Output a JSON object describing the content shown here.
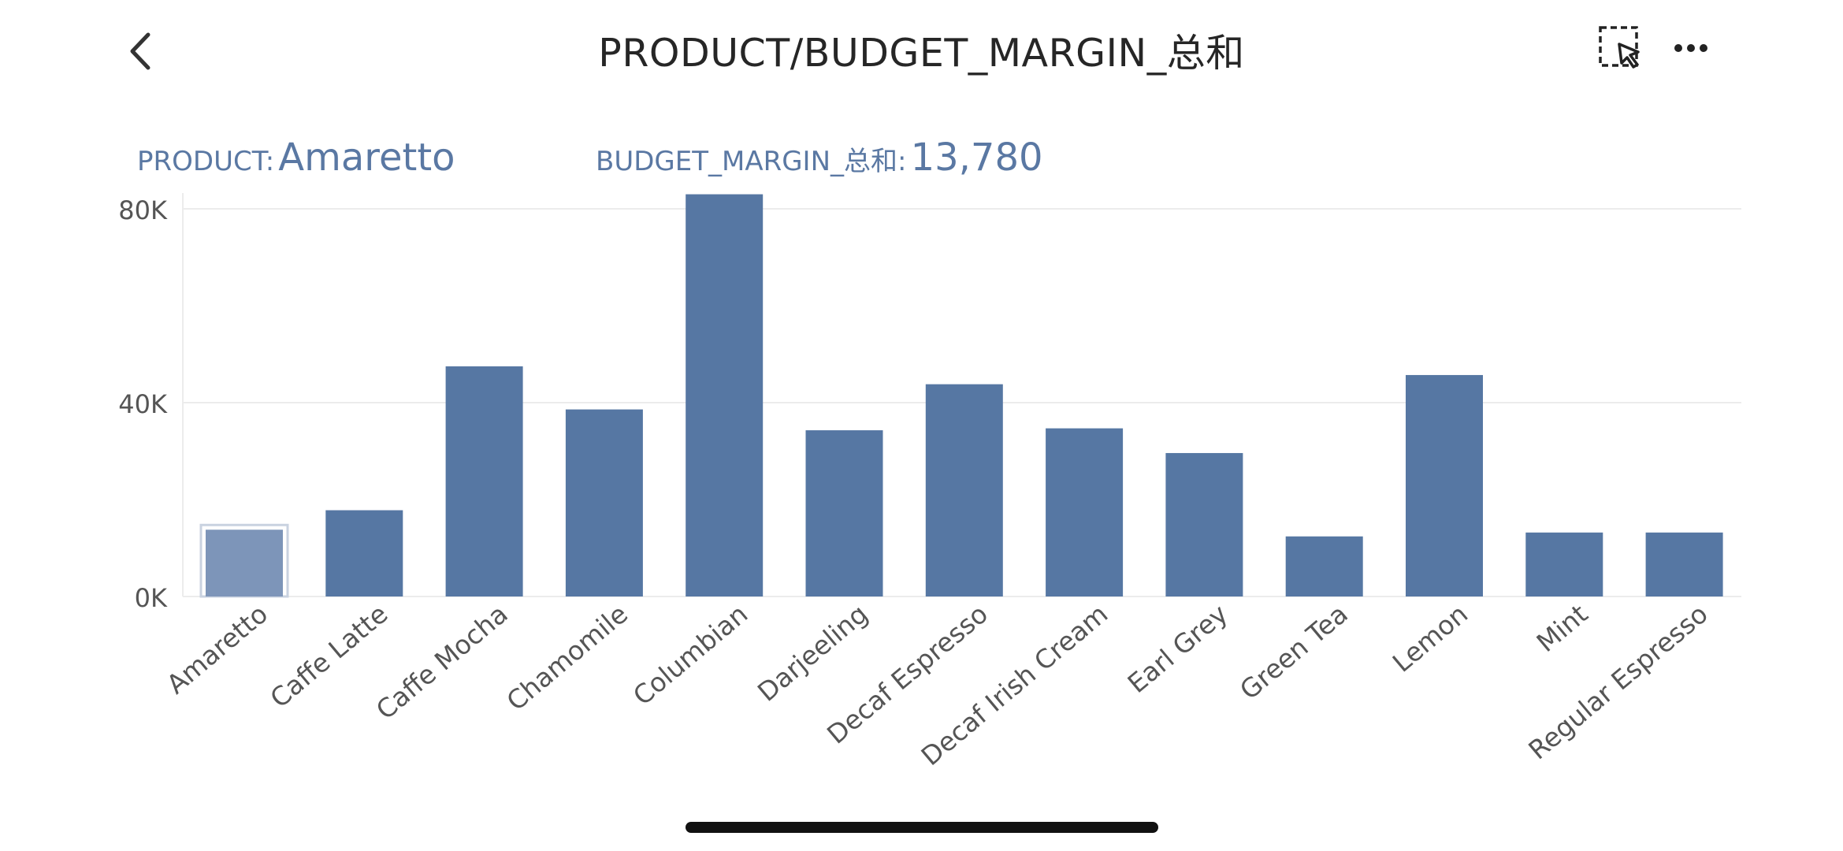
{
  "header": {
    "title": "PRODUCT/BUDGET_MARGIN_总和",
    "back_icon": "chevron-left-icon",
    "select_icon": "dashed-select-cursor-icon",
    "more_icon": "more-horizontal-icon"
  },
  "tooltip": {
    "product_label": "PRODUCT:",
    "product_value": "Amaretto",
    "measure_label": "BUDGET_MARGIN_总和:",
    "measure_value": "13,780"
  },
  "colors": {
    "bar": "#5677a3",
    "bar_selected": "#7d95b9",
    "tooltip_text": "#5a78a3",
    "grid": "#ececec",
    "tick_text": "#555555"
  },
  "chart_data": {
    "type": "bar",
    "title": "",
    "xlabel": "",
    "ylabel": "",
    "categories": [
      "Amaretto",
      "Caffe Latte",
      "Caffe Mocha",
      "Chamomile",
      "Columbian",
      "Darjeeling",
      "Decaf Espresso",
      "Decaf Irish Cream",
      "Earl Grey",
      "Green Tea",
      "Lemon",
      "Mint",
      "Regular Espresso"
    ],
    "values": [
      13780,
      17800,
      47500,
      38600,
      83000,
      34300,
      43800,
      34700,
      29600,
      12400,
      45700,
      13200,
      13200
    ],
    "selected_category": "Amaretto",
    "ylim": [
      0,
      80000
    ],
    "yticks": [
      0,
      40000,
      80000
    ],
    "ytick_labels": [
      "0K",
      "40K",
      "80K"
    ],
    "grid": true,
    "legend": "none"
  },
  "home_indicator": true
}
